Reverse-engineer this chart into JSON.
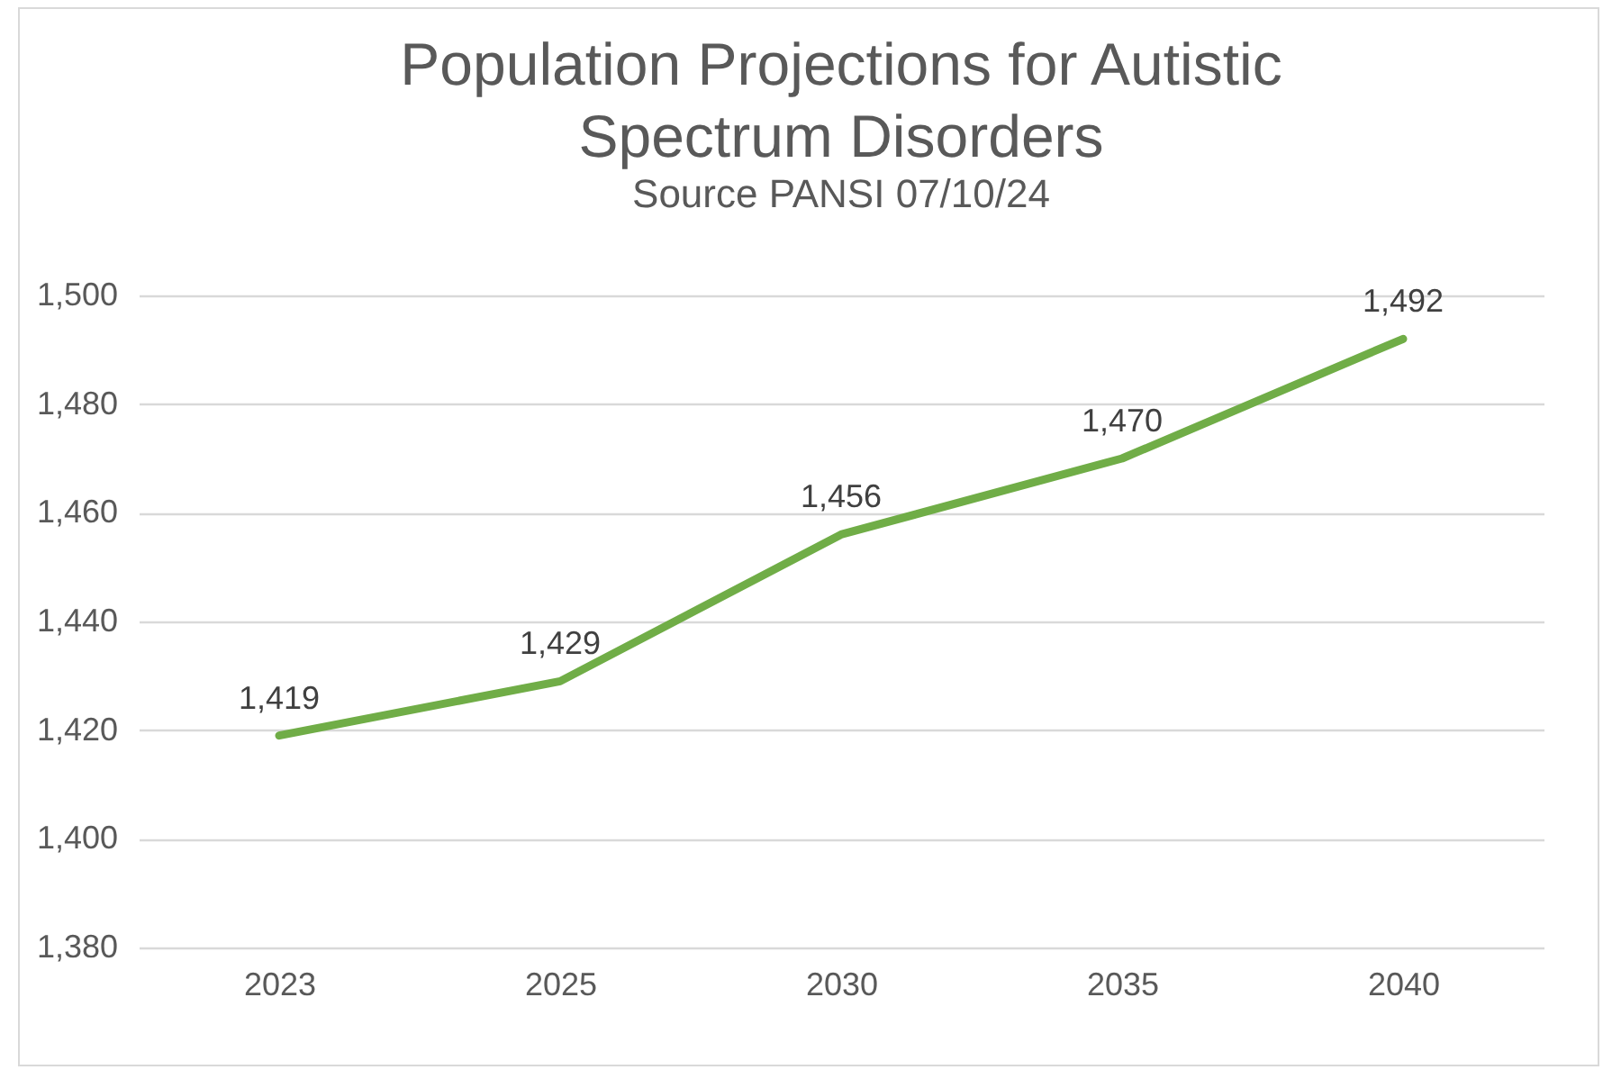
{
  "chart_data": {
    "type": "line",
    "title": "Population Projections for Autistic Spectrum Disorders",
    "subtitle": "Source PANSI 07/10/24",
    "categories": [
      "2023",
      "2025",
      "2030",
      "2035",
      "2040"
    ],
    "series": [
      {
        "color": "#70ad47",
        "values": [
          1419,
          1429,
          1456,
          1470,
          1492
        ],
        "value_labels": [
          "1,419",
          "1,429",
          "1,456",
          "1,470",
          "1,492"
        ]
      }
    ],
    "ylim": [
      1380,
      1500
    ],
    "yticks": [
      {
        "value": 1380,
        "label": "1,380"
      },
      {
        "value": 1400,
        "label": "1,400"
      },
      {
        "value": 1420,
        "label": "1,420"
      },
      {
        "value": 1440,
        "label": "1,440"
      },
      {
        "value": 1460,
        "label": "1,460"
      },
      {
        "value": 1480,
        "label": "1,480"
      },
      {
        "value": 1500,
        "label": "1,500"
      }
    ],
    "grid": "y",
    "legend": false,
    "marker": "none",
    "line_style": "solid"
  }
}
